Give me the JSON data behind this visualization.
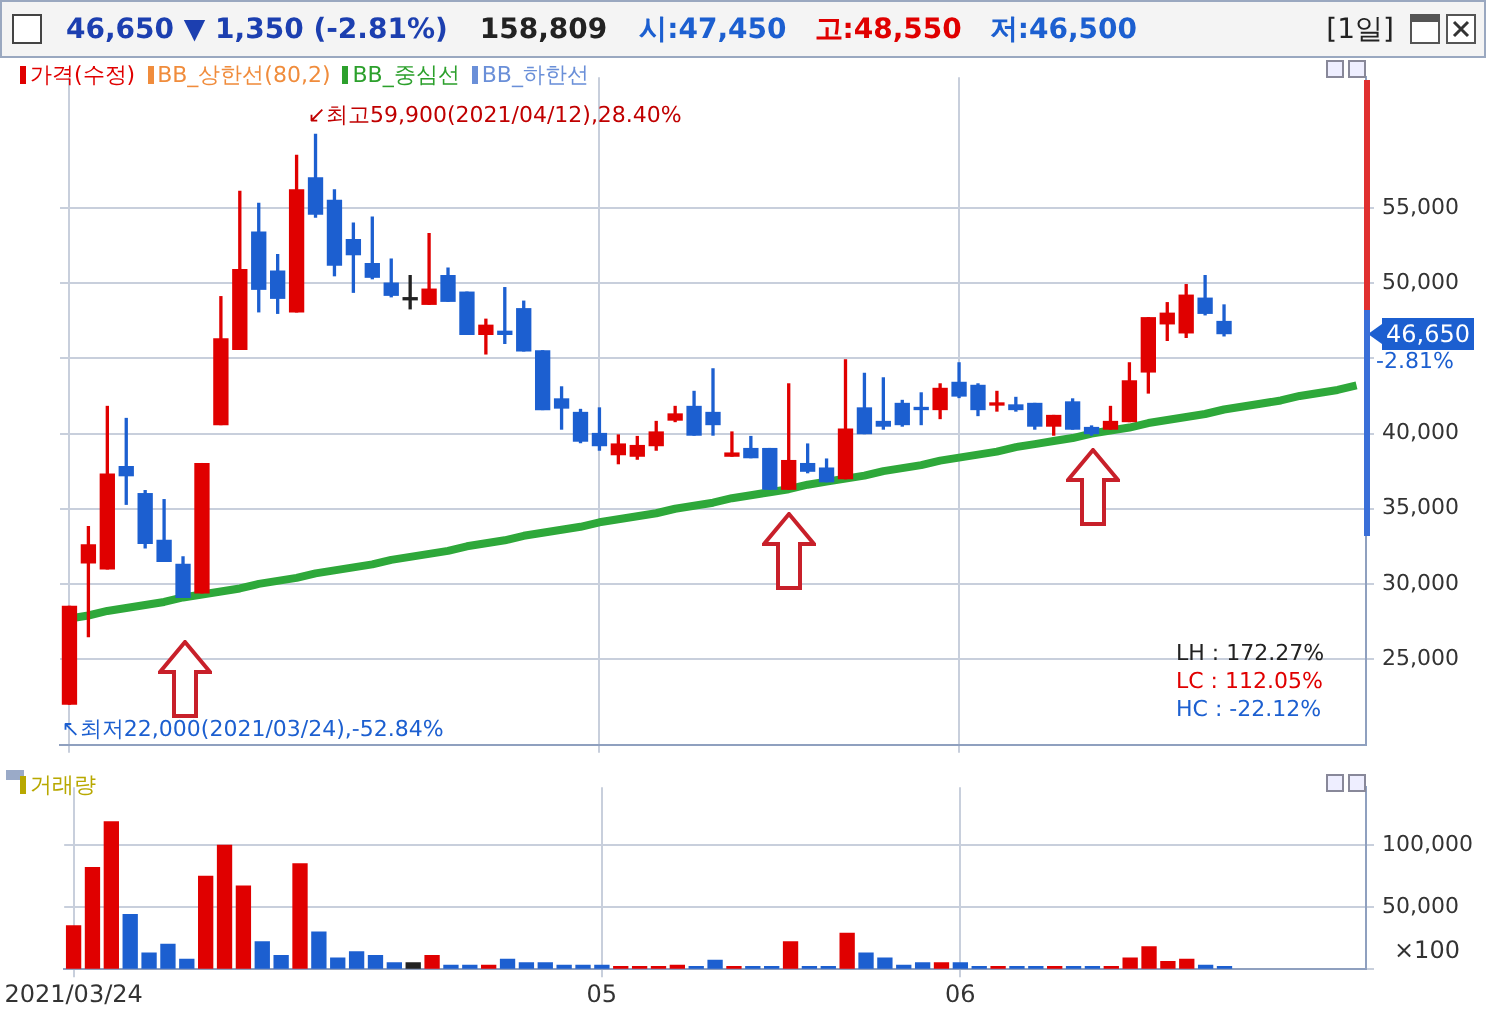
{
  "chart_data": [
    {
      "type": "candlestick",
      "title": "46,650 ▼ 1,350 (-2.81%)",
      "subtitle": "158,809",
      "categories": [
        "2021/03/24",
        null,
        null,
        null,
        null,
        null,
        null,
        null,
        null,
        null,
        null,
        null,
        null,
        null,
        null,
        null,
        null,
        null,
        null,
        null,
        null,
        null,
        null,
        null,
        null,
        null,
        null,
        null,
        "05",
        null,
        null,
        null,
        null,
        null,
        null,
        null,
        null,
        null,
        null,
        null,
        null,
        null,
        null,
        null,
        null,
        null,
        null,
        "06",
        null,
        null,
        null,
        null,
        null,
        null,
        null,
        null,
        null,
        null,
        null,
        null,
        null,
        null,
        null,
        null,
        null,
        null,
        null,
        null,
        null
      ],
      "series": [
        {
          "name": "가격(수정)",
          "type": "candlestick",
          "color": "#e00000",
          "ohlc": [
            [
              22000,
              28500,
              22000,
              28500
            ],
            [
              31400,
              33800,
              26500,
              32600
            ],
            [
              31000,
              41800,
              31000,
              37300
            ],
            [
              37800,
              41000,
              35300,
              37200
            ],
            [
              36000,
              36200,
              32400,
              32700
            ],
            [
              32900,
              35600,
              31500,
              31500
            ],
            [
              31300,
              31800,
              29100,
              29100
            ],
            [
              29400,
              38000,
              29400,
              38000
            ],
            [
              40600,
              49100,
              40600,
              46300
            ],
            [
              45600,
              56100,
              45600,
              50900
            ],
            [
              53400,
              55300,
              48100,
              49600
            ],
            [
              50800,
              51900,
              48000,
              49000
            ],
            [
              48100,
              58500,
              48100,
              56200
            ],
            [
              57000,
              59900,
              54400,
              54600
            ],
            [
              55500,
              56200,
              50500,
              51200
            ],
            [
              52900,
              54000,
              49400,
              51900
            ],
            [
              51300,
              54400,
              50300,
              50400
            ],
            [
              50000,
              51600,
              49100,
              49200
            ],
            [
              48900,
              50500,
              48300,
              48900
            ],
            [
              48600,
              53300,
              48600,
              49600
            ],
            [
              50500,
              51000,
              48800,
              48800
            ],
            [
              49400,
              49400,
              46600,
              46600
            ],
            [
              46600,
              47600,
              45300,
              47200
            ],
            [
              46800,
              49700,
              46000,
              46600
            ],
            [
              48300,
              48800,
              45500,
              45500
            ],
            [
              45500,
              45500,
              41600,
              41600
            ],
            [
              42300,
              43100,
              40300,
              41700
            ],
            [
              41400,
              41600,
              39400,
              39500
            ],
            [
              40000,
              41700,
              38900,
              39200
            ],
            [
              38600,
              39900,
              38000,
              39300
            ],
            [
              38500,
              39800,
              38300,
              39200
            ],
            [
              39200,
              40800,
              38900,
              40100
            ],
            [
              40900,
              41800,
              40800,
              41300
            ],
            [
              41800,
              42800,
              39900,
              39900
            ],
            [
              41400,
              44300,
              39900,
              40600
            ],
            [
              38500,
              40100,
              38500,
              38700
            ],
            [
              39000,
              39800,
              38400,
              38400
            ],
            [
              39000,
              39000,
              36300,
              36300
            ],
            [
              36300,
              43300,
              36300,
              38200
            ],
            [
              38000,
              39300,
              37400,
              37500
            ],
            [
              37700,
              38300,
              36800,
              36800
            ],
            [
              37000,
              44900,
              37000,
              40300
            ],
            [
              41700,
              44000,
              40000,
              40000
            ],
            [
              40800,
              43700,
              40300,
              40500
            ],
            [
              42000,
              42200,
              40500,
              40600
            ],
            [
              41700,
              42700,
              40600,
              41600
            ],
            [
              41600,
              43300,
              41000,
              43000
            ],
            [
              43400,
              44700,
              42400,
              42500
            ],
            [
              43200,
              43300,
              41200,
              41600
            ],
            [
              41900,
              42800,
              41500,
              42000
            ],
            [
              41900,
              42400,
              41500,
              41600
            ],
            [
              42000,
              42000,
              40300,
              40500
            ],
            [
              40500,
              41200,
              39900,
              41200
            ],
            [
              42100,
              42300,
              40300,
              40300
            ],
            [
              40400,
              40500,
              39900,
              40000
            ],
            [
              40300,
              41800,
              40300,
              40800
            ],
            [
              40800,
              44700,
              40800,
              43500
            ],
            [
              44100,
              47700,
              42700,
              47700
            ],
            [
              47300,
              48700,
              46200,
              48000
            ],
            [
              46700,
              49900,
              46400,
              49200
            ],
            [
              49000,
              50500,
              47900,
              48000
            ],
            [
              47450,
              48550,
              46500,
              46650
            ],
            null,
            null,
            null,
            null,
            null,
            null,
            null
          ],
          "colors": [
            "#e00000",
            "#e00000",
            "#e00000",
            "#1c5fd0",
            "#1c5fd0",
            "#1c5fd0",
            "#1c5fd0",
            "#e00000",
            "#e00000",
            "#e00000",
            "#1c5fd0",
            "#1c5fd0",
            "#e00000",
            "#1c5fd0",
            "#1c5fd0",
            "#1c5fd0",
            "#1c5fd0",
            "#1c5fd0",
            "#222222",
            "#e00000",
            "#1c5fd0",
            "#1c5fd0",
            "#e00000",
            "#1c5fd0",
            "#1c5fd0",
            "#1c5fd0",
            "#1c5fd0",
            "#1c5fd0",
            "#1c5fd0",
            "#e00000",
            "#e00000",
            "#e00000",
            "#e00000",
            "#1c5fd0",
            "#1c5fd0",
            "#e00000",
            "#1c5fd0",
            "#1c5fd0",
            "#e00000",
            "#1c5fd0",
            "#1c5fd0",
            "#e00000",
            "#1c5fd0",
            "#1c5fd0",
            "#1c5fd0",
            "#1c5fd0",
            "#e00000",
            "#1c5fd0",
            "#1c5fd0",
            "#e00000",
            "#1c5fd0",
            "#1c5fd0",
            "#e00000",
            "#1c5fd0",
            "#1c5fd0",
            "#e00000",
            "#e00000",
            "#e00000",
            "#e00000",
            "#e00000",
            "#1c5fd0",
            "#1c5fd0",
            null,
            null,
            null,
            null,
            null,
            null,
            null
          ]
        },
        {
          "type": "line",
          "color": "#2ea83a",
          "values": [
            27700,
            27900,
            28200,
            28400,
            28600,
            28800,
            29100,
            29300,
            29500,
            29700,
            30000,
            30200,
            30400,
            30700,
            30900,
            31100,
            31300,
            31600,
            31800,
            32000,
            32200,
            32500,
            32700,
            32900,
            33200,
            33400,
            33600,
            33800,
            34100,
            34300,
            34500,
            34700,
            35000,
            35200,
            35400,
            35700,
            35900,
            36100,
            36300,
            36600,
            36800,
            37000,
            37200,
            37500,
            37700,
            37900,
            38200,
            38400,
            38600,
            38800,
            39100,
            39300,
            39500,
            39700,
            40000,
            40200,
            40400,
            40700,
            40900,
            41100,
            41300,
            41600,
            41800,
            42000,
            42200,
            42500,
            42700,
            42900,
            43200
          ]
        }
      ],
      "ylim": [
        19300,
        63700
      ],
      "yticks": [
        {
          "value": 25000,
          "label": "25,000"
        },
        {
          "value": 30000,
          "label": "30,000"
        },
        {
          "value": 35000,
          "label": "35,000"
        },
        {
          "value": 40000,
          "label": "40,000"
        },
        {
          "value": 45000,
          "label": null
        },
        {
          "value": 50000,
          "label": "50,000"
        },
        {
          "value": 55000,
          "label": "55,000"
        }
      ],
      "tick_labels": "y",
      "grid": true,
      "legend": "top left",
      "annotations": [
        "LH : 172.27%",
        "LC : 112.05%",
        "HC : -22.12%",
        "-2.81%",
        "시:47,450",
        "고:48,550",
        "저:46,500",
        "[1일]",
        "↙최고59,900(2021/04/12),28.40%",
        "↖최저22,000(2021/03/24),-52.84%",
        "46,650",
        "BB_상한선(80,2)",
        "BB_중심선",
        "BB_하한선"
      ]
    },
    {
      "type": "bar",
      "categories": [
        "2021/03/24",
        null,
        null,
        null,
        null,
        null,
        null,
        null,
        null,
        null,
        null,
        null,
        null,
        null,
        null,
        null,
        null,
        null,
        null,
        null,
        null,
        null,
        null,
        null,
        null,
        null,
        null,
        null,
        "05",
        null,
        null,
        null,
        null,
        null,
        null,
        null,
        null,
        null,
        null,
        null,
        null,
        null,
        null,
        null,
        null,
        null,
        null,
        "06",
        null,
        null,
        null,
        null,
        null,
        null,
        null,
        null,
        null,
        null,
        null,
        null,
        null,
        null,
        null,
        null,
        null,
        null,
        null,
        null,
        null
      ],
      "series": [
        {
          "name": "거래량",
          "color": "#b8a800",
          "colors": [
            "#e00000",
            "#e00000",
            "#e00000",
            "#1c5fd0",
            "#1c5fd0",
            "#1c5fd0",
            "#1c5fd0",
            "#e00000",
            "#e00000",
            "#e00000",
            "#1c5fd0",
            "#1c5fd0",
            "#e00000",
            "#1c5fd0",
            "#1c5fd0",
            "#1c5fd0",
            "#1c5fd0",
            "#1c5fd0",
            "#222222",
            "#e00000",
            "#1c5fd0",
            "#1c5fd0",
            "#e00000",
            "#1c5fd0",
            "#1c5fd0",
            "#1c5fd0",
            "#1c5fd0",
            "#1c5fd0",
            "#1c5fd0",
            "#e00000",
            "#e00000",
            "#e00000",
            "#e00000",
            "#1c5fd0",
            "#1c5fd0",
            "#e00000",
            "#1c5fd0",
            "#1c5fd0",
            "#e00000",
            "#1c5fd0",
            "#1c5fd0",
            "#e00000",
            "#1c5fd0",
            "#1c5fd0",
            "#1c5fd0",
            "#1c5fd0",
            "#e00000",
            "#1c5fd0",
            "#1c5fd0",
            "#e00000",
            "#1c5fd0",
            "#1c5fd0",
            "#e00000",
            "#1c5fd0",
            "#1c5fd0",
            "#e00000",
            "#e00000",
            "#e00000",
            "#e00000",
            "#e00000",
            "#1c5fd0",
            "#1c5fd0",
            null,
            null,
            null,
            null,
            null,
            null,
            null
          ],
          "values": [
            35000,
            82000,
            119000,
            44000,
            13000,
            20000,
            8000,
            75000,
            100000,
            67000,
            22000,
            11000,
            85000,
            30000,
            9000,
            14000,
            11000,
            5000,
            5000,
            11000,
            3000,
            3000,
            3000,
            8000,
            5000,
            5000,
            3000,
            3000,
            3000,
            2000,
            2000,
            2000,
            3000,
            2000,
            7000,
            2000,
            2000,
            2000,
            22000,
            2000,
            2000,
            29000,
            13000,
            9000,
            3000,
            5000,
            5000,
            5000,
            2000,
            2000,
            2000,
            2000,
            2000,
            2000,
            2000,
            2000,
            9000,
            18000,
            6000,
            8000,
            3000,
            2000,
            null,
            null,
            null,
            null,
            null,
            null,
            null
          ]
        }
      ],
      "ylim": [
        0,
        147000
      ],
      "yticks": [
        {
          "value": 0,
          "label": null
        },
        {
          "value": 50000,
          "label": "50,000"
        },
        {
          "value": 100000,
          "label": "100,000"
        }
      ],
      "ylabel": "×100",
      "grid": true,
      "legend": "top left"
    }
  ]
}
